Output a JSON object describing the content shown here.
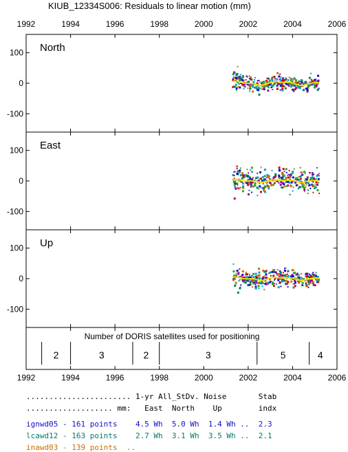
{
  "chart_data": {
    "type": "scatter",
    "title": "KIUB_12334S006: Residuals to linear motion (mm)",
    "xlim": [
      1992,
      2006
    ],
    "x_ticks": [
      "1992",
      "1994",
      "1996",
      "1998",
      "2000",
      "2002",
      "2004",
      "2006"
    ],
    "y_ticks": [
      "100",
      "0",
      "-100"
    ],
    "ylim": [
      -160,
      160
    ],
    "grid": false,
    "panels": [
      {
        "name": "North",
        "x_range": [
          2001.3,
          2005.2
        ],
        "spread": 12,
        "smooth_amp": 5
      },
      {
        "name": "East",
        "x_range": [
          2001.3,
          2005.2
        ],
        "spread": 18,
        "smooth_amp": 3
      },
      {
        "name": "Up",
        "x_range": [
          2001.3,
          2005.2
        ],
        "spread": 13,
        "smooth_amp": 4
      }
    ],
    "satellite_strip": {
      "label": "Number of DORIS satellites used for positioning",
      "boundaries": [
        1992.7,
        1994.0,
        1996.8,
        1998.0,
        2002.4,
        2004.75
      ],
      "segments": [
        {
          "from": 1992.7,
          "to": 1994.0,
          "count": "2"
        },
        {
          "from": 1994.0,
          "to": 1996.8,
          "count": "3"
        },
        {
          "from": 1996.8,
          "to": 1998.0,
          "count": "2"
        },
        {
          "from": 1998.0,
          "to": 2002.4,
          "count": "3"
        },
        {
          "from": 2002.4,
          "to": 2004.75,
          "count": "5"
        },
        {
          "from": 2004.75,
          "to": 2006.0,
          "count": "4"
        }
      ]
    },
    "series": [
      {
        "name": "ignwd05",
        "color": "#1010c8"
      },
      {
        "name": "lcawd12",
        "color": "#007a6a"
      },
      {
        "name": "inawd03",
        "color": "#c87000"
      }
    ],
    "smooth_color": "#f0e000",
    "extra_colors": [
      "#c81010",
      "#30a030",
      "#a000a0",
      "#00a0c0"
    ]
  },
  "table": {
    "header1": "....................... 1-yr All_StDv. Noise       Stab",
    "header2": "................... mm:   East  North    Up        indx",
    "rows": [
      {
        "text": "ignwd05 - 161 points    4.5 Wh  5.0 Wh  1.4 Wh ..  2.3",
        "color": "#1010c8"
      },
      {
        "text": "lcawd12 - 163 points    2.7 Wh  3.1 Wh  3.5 Wh ..  2.1",
        "color": "#007a6a"
      },
      {
        "text": "inawd03 - 139 points  ..",
        "color": "#c87000"
      }
    ]
  }
}
